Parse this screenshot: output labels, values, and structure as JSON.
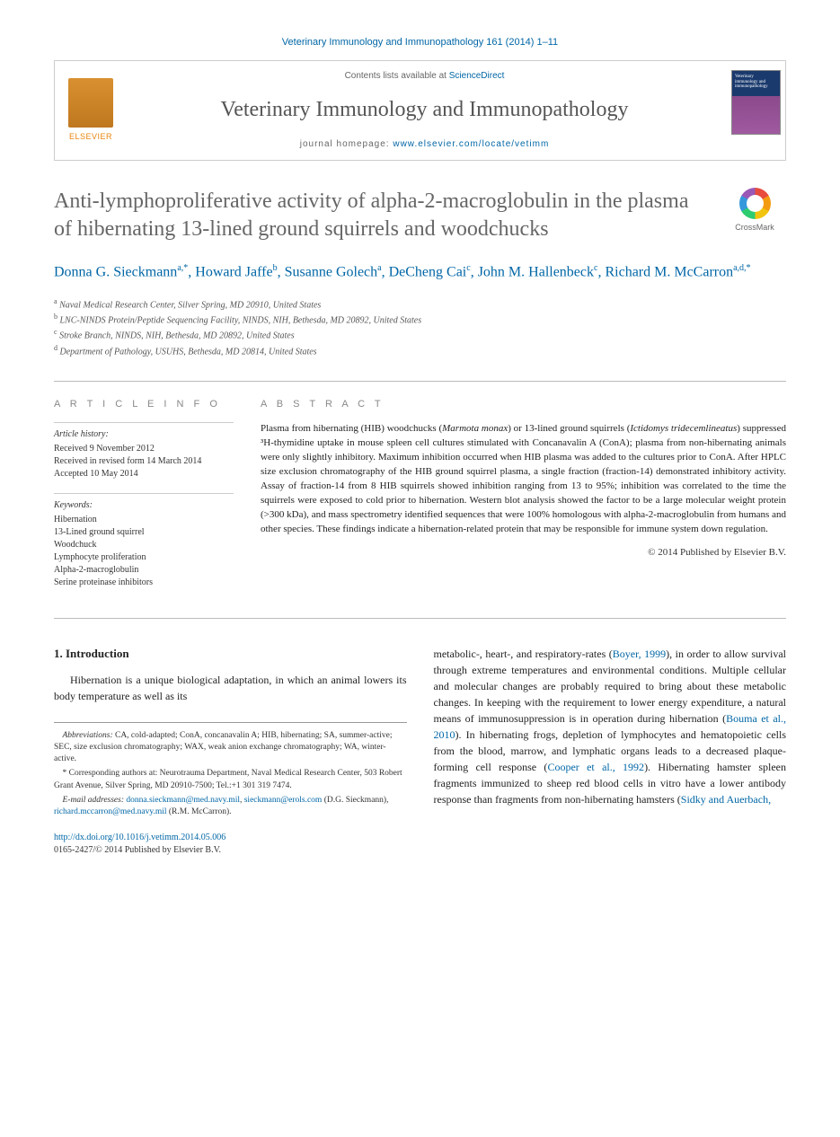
{
  "citation": "Veterinary Immunology and Immunopathology 161 (2014) 1–11",
  "header": {
    "contents_prefix": "Contents lists available at ",
    "contents_link": "ScienceDirect",
    "journal_name": "Veterinary Immunology and Immunopathology",
    "homepage_prefix": "journal homepage: ",
    "homepage_url": "www.elsevier.com/locate/vetimm",
    "elsevier": "ELSEVIER",
    "cover_text": "Veterinary immunology and immunopathology"
  },
  "crossmark": "CrossMark",
  "title": "Anti-lymphoproliferative activity of alpha-2-macroglobulin in the plasma of hibernating 13-lined ground squirrels and woodchucks",
  "authors_html": "Donna G. Sieckmann<sup class='sup'>a,*</sup>, Howard Jaffe<sup class='sup'>b</sup>, Susanne Golech<sup class='sup'>a</sup>, DeCheng Cai<sup class='sup'>c</sup>, John M. Hallenbeck<sup class='sup'>c</sup>, Richard M. McCarron<sup class='sup'>a,d,*</sup>",
  "affiliations": [
    "a Naval Medical Research Center, Silver Spring, MD 20910, United States",
    "b LNC-NINDS Protein/Peptide Sequencing Facility, NINDS, NIH, Bethesda, MD 20892, United States",
    "c Stroke Branch, NINDS, NIH, Bethesda, MD 20892, United States",
    "d Department of Pathology, USUHS, Bethesda, MD 20814, United States"
  ],
  "info": {
    "heading": "A R T I C L E   I N F O",
    "history_label": "Article history:",
    "history": [
      "Received 9 November 2012",
      "Received in revised form 14 March 2014",
      "Accepted 10 May 2014"
    ],
    "keywords_label": "Keywords:",
    "keywords": [
      "Hibernation",
      "13-Lined ground squirrel",
      "Woodchuck",
      "Lymphocyte proliferation",
      "Alpha-2-macroglobulin",
      "Serine proteinase inhibitors"
    ]
  },
  "abstract": {
    "heading": "A B S T R A C T",
    "text": "Plasma from hibernating (HIB) woodchucks (Marmota monax) or 13-lined ground squirrels (Ictidomys tridecemlineatus) suppressed ³H-thymidine uptake in mouse spleen cell cultures stimulated with Concanavalin A (ConA); plasma from non-hibernating animals were only slightly inhibitory. Maximum inhibition occurred when HIB plasma was added to the cultures prior to ConA. After HPLC size exclusion chromatography of the HIB ground squirrel plasma, a single fraction (fraction-14) demonstrated inhibitory activity. Assay of fraction-14 from 8 HIB squirrels showed inhibition ranging from 13 to 95%; inhibition was correlated to the time the squirrels were exposed to cold prior to hibernation. Western blot analysis showed the factor to be a large molecular weight protein (>300 kDa), and mass spectrometry identified sequences that were 100% homologous with alpha-2-macroglobulin from humans and other species. These findings indicate a hibernation-related protein that may be responsible for immune system down regulation.",
    "copyright": "© 2014 Published by Elsevier B.V."
  },
  "body": {
    "section_heading": "1.  Introduction",
    "para1": "Hibernation is a unique biological adaptation, in which an animal lowers its body temperature as well as its",
    "para2_pre": "metabolic-, heart-, and respiratory-rates (",
    "para2_ref1": "Boyer, 1999",
    "para2_mid1": "), in order to allow survival through extreme temperatures and environmental conditions. Multiple cellular and molecular changes are probably required to bring about these metabolic changes. In keeping with the requirement to lower energy expenditure, a natural means of immunosuppression is in operation during hibernation (",
    "para2_ref2": "Bouma et al., 2010",
    "para2_mid2": "). In hibernating frogs, depletion of lymphocytes and hematopoietic cells from the blood, marrow, and lymphatic organs leads to a decreased plaque-forming cell response (",
    "para2_ref3": "Cooper et al., 1992",
    "para2_mid3": "). Hibernating hamster spleen fragments immunized to sheep red blood cells in vitro have a lower antibody response than fragments from non-hibernating hamsters (",
    "para2_ref4": "Sidky and Auerbach,"
  },
  "footnotes": {
    "abbrev_label": "Abbreviations:",
    "abbrev": " CA, cold-adapted; ConA, concanavalin A; HIB, hibernating; SA, summer-active; SEC, size exclusion chromatography; WAX, weak anion exchange chromatography; WA, winter-active.",
    "corr": "* Corresponding authors at: Neurotrauma Department, Naval Medical Research Center, 503 Robert Grant Avenue, Silver Spring, MD 20910-7500; Tel.:+1 301 319 7474.",
    "email_label": "E-mail addresses:",
    "email1": "donna.sieckmann@med.navy.mil",
    "email_sep1": ", ",
    "email2": "sieckmann@erols.com",
    "email_name1": " (D.G. Sieckmann), ",
    "email3": "richard.mccarron@med.navy.mil",
    "email_name2": " (R.M. McCarron)."
  },
  "doi": {
    "url": "http://dx.doi.org/10.1016/j.vetimm.2014.05.006",
    "line2": "0165-2427/© 2014 Published by Elsevier B.V."
  },
  "colors": {
    "link": "#0066a6",
    "title_gray": "#666666",
    "text": "#222222",
    "border": "#cccccc"
  }
}
